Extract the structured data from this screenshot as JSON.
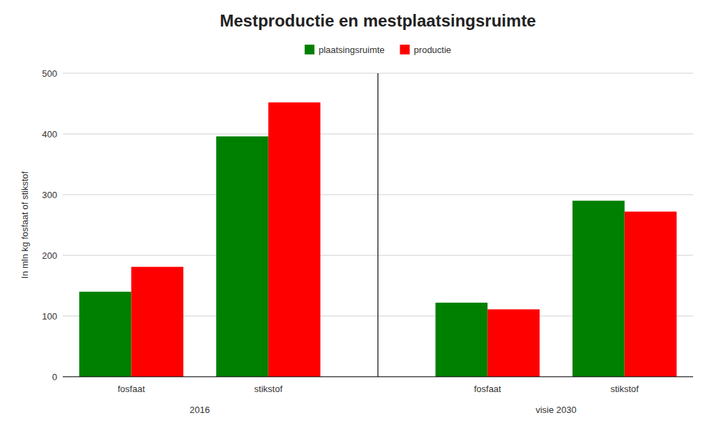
{
  "chart_data": {
    "type": "bar",
    "title": "Mestproductie en mestplaatsingsruimte",
    "y_label": "In mln kg fosfaat of stikstof",
    "categories": [
      "fosfaat",
      "stikstof",
      "fosfaat",
      "stikstof"
    ],
    "category_groups": [
      "2016",
      "2016",
      "visie 2030",
      "visie 2030"
    ],
    "series": [
      {
        "name": "plaatsingsruimte",
        "color": "#008000",
        "values": [
          140,
          396,
          122,
          290
        ]
      },
      {
        "name": "productie",
        "color": "#ff0000",
        "values": [
          181,
          452,
          111,
          272
        ]
      }
    ],
    "ylim": [
      0,
      500
    ],
    "yticks": [
      0,
      100,
      200,
      300,
      400,
      500
    ],
    "grid": true,
    "legend": "top"
  }
}
